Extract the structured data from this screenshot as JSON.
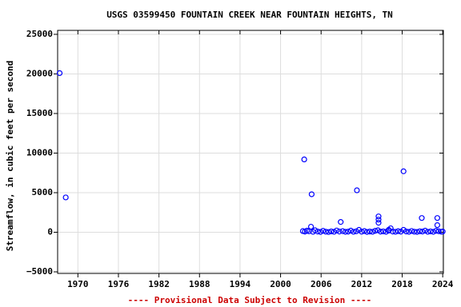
{
  "chart_data": {
    "type": "scatter",
    "title": "USGS 03599450 FOUNTAIN CREEK NEAR FOUNTAIN HEIGHTS, TN",
    "y_label": "Streamflow, in cubic feet per second",
    "note": "---- Provisional Data Subject to Revision ----",
    "color": "#0000ff",
    "xlim": [
      1967,
      2024.1
    ],
    "ylim": [
      -5200,
      25500
    ],
    "xticks": [
      1970,
      1976,
      1982,
      1988,
      1994,
      2000,
      2006,
      2012,
      2018,
      2024
    ],
    "yticks": [
      {
        "value": -5000,
        "label": "−5000"
      },
      0,
      5000,
      10000,
      15000,
      20000,
      25000
    ],
    "x": [
      1967.3,
      1968.2,
      2003.5,
      2004.6,
      2004.5,
      2008.9,
      2011.3,
      2014.5,
      2014.5,
      2014.5,
      2018.2,
      2020.9,
      2023.2,
      2023.2,
      2016.3,
      2016.0,
      2003.3,
      2003.6,
      2003.9,
      2004.2,
      2004.8,
      2005.1,
      2005.5,
      2005.9,
      2006.3,
      2006.7,
      2007.1,
      2007.5,
      2007.9,
      2008.3,
      2008.7,
      2009.2,
      2009.6,
      2010.0,
      2010.4,
      2010.8,
      2011.2,
      2011.6,
      2012.0,
      2012.4,
      2012.8,
      2013.2,
      2013.6,
      2014.0,
      2014.4,
      2014.8,
      2015.2,
      2015.6,
      2016.0,
      2016.6,
      2017.0,
      2017.4,
      2017.8,
      2018.2,
      2018.6,
      2019.0,
      2019.4,
      2019.8,
      2020.2,
      2020.6,
      2021.0,
      2021.4,
      2021.8,
      2022.2,
      2022.6,
      2023.0,
      2023.4,
      2023.8,
      2024.0
    ],
    "values": [
      20100,
      4400,
      9200,
      4800,
      700,
      1300,
      5300,
      2000,
      1600,
      1200,
      7700,
      1800,
      1800,
      900,
      500,
      300,
      150,
      80,
      200,
      120,
      60,
      250,
      90,
      40,
      180,
      70,
      30,
      110,
      60,
      220,
      90,
      140,
      50,
      80,
      200,
      60,
      120,
      300,
      70,
      150,
      40,
      90,
      60,
      180,
      250,
      80,
      110,
      50,
      200,
      90,
      60,
      140,
      80,
      300,
      100,
      50,
      160,
      70,
      40,
      120,
      90,
      200,
      60,
      110,
      50,
      180,
      130,
      70,
      90
    ],
    "grid": true
  }
}
